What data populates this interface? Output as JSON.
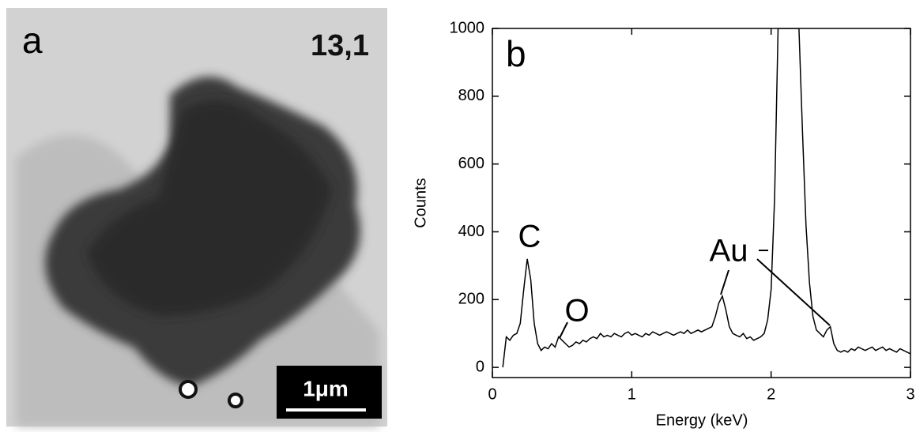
{
  "image_panel": {
    "label": "a",
    "sample_id": "13,1",
    "scale_bar": "1μm"
  },
  "chart_data": {
    "type": "line",
    "panel_label": "b",
    "x_label": "Energy (keV)",
    "y_label": "Counts",
    "xlim": [
      0,
      3
    ],
    "ylim": [
      -30,
      1000
    ],
    "xticks": [
      0,
      1,
      2,
      3
    ],
    "yticks": [
      0,
      200,
      400,
      600,
      800,
      1000
    ],
    "color": "#000000",
    "annotations": [
      "C",
      "O",
      "Au"
    ],
    "x": [
      0.075,
      0.1,
      0.125,
      0.15,
      0.175,
      0.2,
      0.225,
      0.25,
      0.275,
      0.3,
      0.325,
      0.35,
      0.375,
      0.4,
      0.425,
      0.45,
      0.475,
      0.5,
      0.525,
      0.55,
      0.575,
      0.6,
      0.625,
      0.65,
      0.675,
      0.7,
      0.725,
      0.75,
      0.775,
      0.8,
      0.825,
      0.85,
      0.875,
      0.9,
      0.925,
      0.95,
      0.975,
      1.0,
      1.025,
      1.05,
      1.075,
      1.1,
      1.125,
      1.15,
      1.175,
      1.2,
      1.225,
      1.25,
      1.275,
      1.3,
      1.325,
      1.35,
      1.375,
      1.4,
      1.425,
      1.45,
      1.475,
      1.5,
      1.525,
      1.55,
      1.575,
      1.6,
      1.625,
      1.65,
      1.675,
      1.7,
      1.725,
      1.75,
      1.775,
      1.8,
      1.825,
      1.85,
      1.875,
      1.9,
      1.925,
      1.95,
      1.975,
      2.0,
      2.025,
      2.05,
      2.075,
      2.1,
      2.125,
      2.15,
      2.175,
      2.2,
      2.225,
      2.25,
      2.275,
      2.3,
      2.325,
      2.35,
      2.375,
      2.4,
      2.425,
      2.45,
      2.475,
      2.5,
      2.525,
      2.55,
      2.575,
      2.6,
      2.625,
      2.65,
      2.675,
      2.7,
      2.725,
      2.75,
      2.775,
      2.8,
      2.825,
      2.85,
      2.875,
      2.9,
      2.925,
      2.95,
      2.975,
      3.0
    ],
    "values": [
      0,
      90,
      80,
      95,
      100,
      130,
      230,
      320,
      260,
      130,
      70,
      50,
      60,
      55,
      70,
      60,
      90,
      80,
      70,
      60,
      65,
      75,
      70,
      80,
      75,
      85,
      90,
      85,
      100,
      90,
      95,
      90,
      100,
      95,
      90,
      100,
      105,
      95,
      100,
      95,
      90,
      100,
      95,
      105,
      100,
      95,
      100,
      105,
      100,
      95,
      100,
      105,
      100,
      110,
      100,
      105,
      110,
      105,
      110,
      115,
      120,
      150,
      190,
      210,
      170,
      120,
      100,
      95,
      90,
      100,
      85,
      90,
      80,
      85,
      90,
      100,
      140,
      230,
      500,
      1000,
      1000,
      1000,
      1000,
      1000,
      1000,
      1000,
      700,
      420,
      250,
      150,
      110,
      100,
      90,
      110,
      120,
      70,
      50,
      45,
      50,
      45,
      55,
      50,
      60,
      55,
      50,
      55,
      60,
      50,
      55,
      60,
      50,
      55,
      50,
      45,
      55,
      50,
      45,
      40
    ]
  }
}
